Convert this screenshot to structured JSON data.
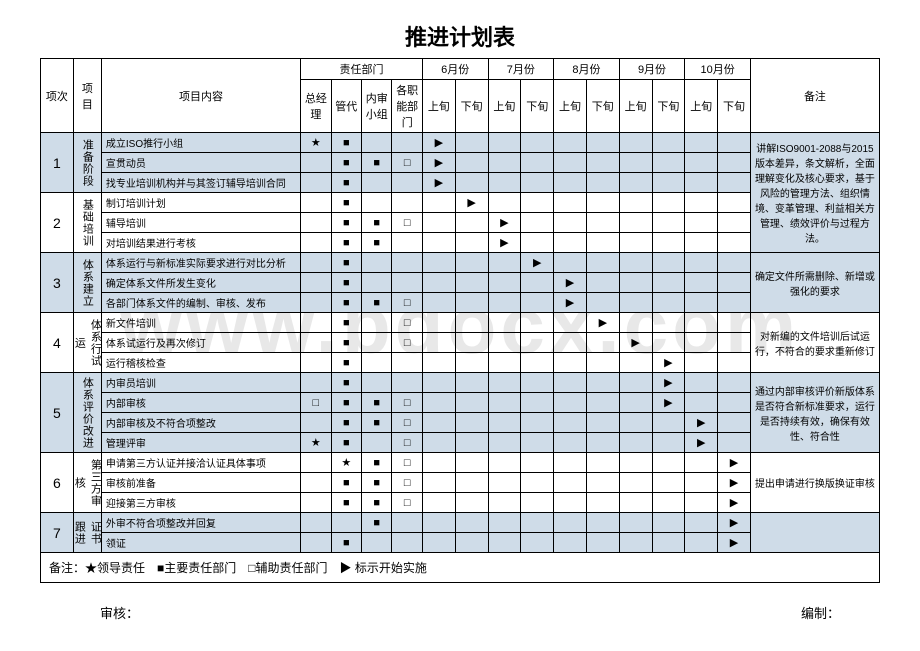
{
  "title": "推进计划表",
  "watermark": "www.bdocx.com",
  "header": {
    "seq": "项次",
    "project": "项目",
    "content": "项目内容",
    "dept_group": "责任部门",
    "depts": [
      "总经理",
      "管代",
      "内审小组",
      "各职能部门"
    ],
    "months": [
      "6月份",
      "7月份",
      "8月份",
      "9月份",
      "10月份"
    ],
    "periods": [
      "上旬",
      "下旬"
    ],
    "remark": "备注"
  },
  "phases": [
    {
      "seq": "1",
      "name": "准备阶段",
      "shade": true,
      "remark": "讲解ISO9001-2088与2015版本差异，条文解析，全面理解变化及核心要求，基于风险的管理方法、组织情境、变革管理、利益相关方管理、绩效评价与过程方法。",
      "remark_span": 6,
      "rows": [
        {
          "content": "成立ISO推行小组",
          "d": [
            "★",
            "■",
            "",
            ""
          ],
          "m": [
            "▶",
            "",
            "",
            "",
            "",
            "",
            "",
            "",
            "",
            ""
          ]
        },
        {
          "content": "宣贯动员",
          "d": [
            "",
            "■",
            "■",
            "□"
          ],
          "m": [
            "▶",
            "",
            "",
            "",
            "",
            "",
            "",
            "",
            "",
            ""
          ]
        },
        {
          "content": "找专业培训机构并与其签订辅导培训合同",
          "d": [
            "",
            "■",
            "",
            ""
          ],
          "m": [
            "▶",
            "",
            "",
            "",
            "",
            "",
            "",
            "",
            "",
            ""
          ]
        }
      ]
    },
    {
      "seq": "2",
      "name": "基础培训",
      "shade": false,
      "rows": [
        {
          "content": "制订培训计划",
          "d": [
            "",
            "■",
            "",
            ""
          ],
          "m": [
            "",
            "▶",
            "",
            "",
            "",
            "",
            "",
            "",
            "",
            ""
          ]
        },
        {
          "content": "辅导培训",
          "d": [
            "",
            "■",
            "■",
            "□"
          ],
          "m": [
            "",
            "",
            "▶",
            "",
            "",
            "",
            "",
            "",
            "",
            ""
          ]
        },
        {
          "content": "对培训结果进行考核",
          "d": [
            "",
            "■",
            "■",
            ""
          ],
          "m": [
            "",
            "",
            "▶",
            "",
            "",
            "",
            "",
            "",
            "",
            ""
          ]
        }
      ]
    },
    {
      "seq": "3",
      "name": "体系建立",
      "shade": true,
      "remark": "确定文件所需删除、新增或强化的要求",
      "remark_span": 3,
      "rows": [
        {
          "content": "体系运行与新标准实际要求进行对比分析",
          "d": [
            "",
            "■",
            "",
            ""
          ],
          "m": [
            "",
            "",
            "",
            "▶",
            "",
            "",
            "",
            "",
            "",
            ""
          ]
        },
        {
          "content": "确定体系文件所发生变化",
          "d": [
            "",
            "■",
            "",
            ""
          ],
          "m": [
            "",
            "",
            "",
            "",
            "▶",
            "",
            "",
            "",
            "",
            ""
          ]
        },
        {
          "content": "各部门体系文件的编制、审核、发布",
          "d": [
            "",
            "■",
            "■",
            "□"
          ],
          "m": [
            "",
            "",
            "",
            "",
            "▶",
            "",
            "",
            "",
            "",
            ""
          ]
        }
      ]
    },
    {
      "seq": "4",
      "name": "体系行试运",
      "shade": false,
      "remark": "对新编的文件培训后试运行，不符合的要求重新修订",
      "remark_span": 3,
      "rows": [
        {
          "content": "新文件培训",
          "d": [
            "",
            "■",
            "",
            "□"
          ],
          "m": [
            "",
            "",
            "",
            "",
            "",
            "▶",
            "",
            "",
            "",
            ""
          ]
        },
        {
          "content": "体系试运行及再次修订",
          "d": [
            "",
            "■",
            "",
            "□"
          ],
          "m": [
            "",
            "",
            "",
            "",
            "",
            "",
            "▶",
            "",
            "",
            ""
          ]
        },
        {
          "content": "运行稽核检查",
          "d": [
            "",
            "■",
            "",
            ""
          ],
          "m": [
            "",
            "",
            "",
            "",
            "",
            "",
            "",
            "▶",
            "",
            ""
          ]
        }
      ]
    },
    {
      "seq": "5",
      "name": "体系评价改进",
      "shade": true,
      "remark": "通过内部审核评价新版体系是否符合新标准要求，运行是否持续有效，确保有效性、符合性",
      "remark_span": 4,
      "rows": [
        {
          "content": "内审员培训",
          "d": [
            "",
            "■",
            "",
            ""
          ],
          "m": [
            "",
            "",
            "",
            "",
            "",
            "",
            "",
            "▶",
            "",
            ""
          ]
        },
        {
          "content": "内部审核",
          "d": [
            "□",
            "■",
            "■",
            "□"
          ],
          "m": [
            "",
            "",
            "",
            "",
            "",
            "",
            "",
            "▶",
            "",
            ""
          ]
        },
        {
          "content": "内部审核及不符合项整改",
          "d": [
            "",
            "■",
            "■",
            "□"
          ],
          "m": [
            "",
            "",
            "",
            "",
            "",
            "",
            "",
            "",
            "▶",
            ""
          ]
        },
        {
          "content": "管理评审",
          "d": [
            "★",
            "■",
            "",
            "□"
          ],
          "m": [
            "",
            "",
            "",
            "",
            "",
            "",
            "",
            "",
            "▶",
            ""
          ]
        }
      ]
    },
    {
      "seq": "6",
      "name": "第三方审核",
      "shade": false,
      "remark": "提出申请进行换版换证审核",
      "remark_span": 3,
      "rows": [
        {
          "content": "申请第三方认证并接洽认证具体事项",
          "d": [
            "",
            "★",
            "■",
            "□"
          ],
          "m": [
            "",
            "",
            "",
            "",
            "",
            "",
            "",
            "",
            "",
            "▶"
          ]
        },
        {
          "content": "审核前准备",
          "d": [
            "",
            "■",
            "■",
            "□"
          ],
          "m": [
            "",
            "",
            "",
            "",
            "",
            "",
            "",
            "",
            "",
            "▶"
          ]
        },
        {
          "content": "迎接第三方审核",
          "d": [
            "",
            "■",
            "■",
            "□"
          ],
          "m": [
            "",
            "",
            "",
            "",
            "",
            "",
            "",
            "",
            "",
            "▶"
          ]
        }
      ]
    },
    {
      "seq": "7",
      "name": "证书跟进",
      "shade": true,
      "remark": "",
      "remark_span": 2,
      "rows": [
        {
          "content": "外审不符合项整改并回复",
          "d": [
            "",
            "",
            "■",
            ""
          ],
          "m": [
            "",
            "",
            "",
            "",
            "",
            "",
            "",
            "",
            "",
            "▶"
          ]
        },
        {
          "content": "领证",
          "d": [
            "",
            "■",
            "",
            ""
          ],
          "m": [
            "",
            "",
            "",
            "",
            "",
            "",
            "",
            "",
            "",
            "▶"
          ]
        }
      ]
    }
  ],
  "legend": "备注：★领导责任　■主要责任部门　□辅助责任部门　▶ 标示开始实施",
  "footer": {
    "review": "审核：",
    "prepare": "编制："
  }
}
